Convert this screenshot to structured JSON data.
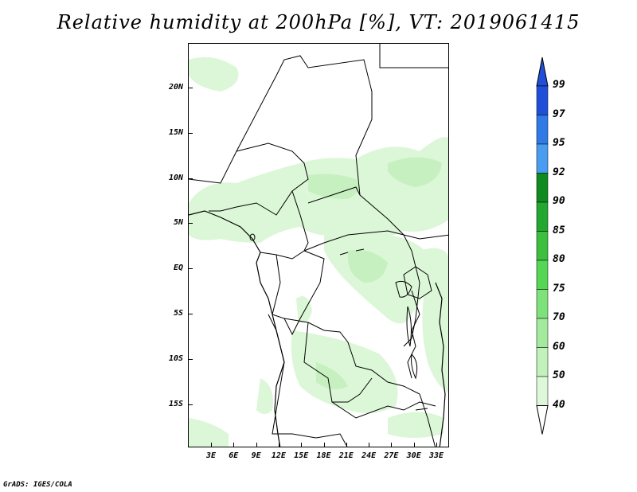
{
  "title": "Relative humidity at 200hPa [%], VT: 2019061415",
  "footer": "GrADS: IGES/COLA",
  "map": {
    "lat_labels": [
      "20N",
      "15N",
      "10N",
      "5N",
      "EQ",
      "5S",
      "10S",
      "15S"
    ],
    "lon_labels": [
      "3E",
      "6E",
      "9E",
      "12E",
      "15E",
      "18E",
      "21E",
      "24E",
      "27E",
      "30E",
      "33E"
    ]
  },
  "colorbar": {
    "labels": [
      "99",
      "97",
      "95",
      "92",
      "90",
      "85",
      "80",
      "75",
      "70",
      "60",
      "50",
      "40"
    ],
    "colors": [
      "#1f4fd8",
      "#2f7ae6",
      "#4a9cf0",
      "#0f8a1f",
      "#22a82f",
      "#3cbf3f",
      "#55d655",
      "#7de27a",
      "#a3ea9e",
      "#c1f2bc",
      "#ddf8d8",
      "#f2fdf0"
    ]
  }
}
